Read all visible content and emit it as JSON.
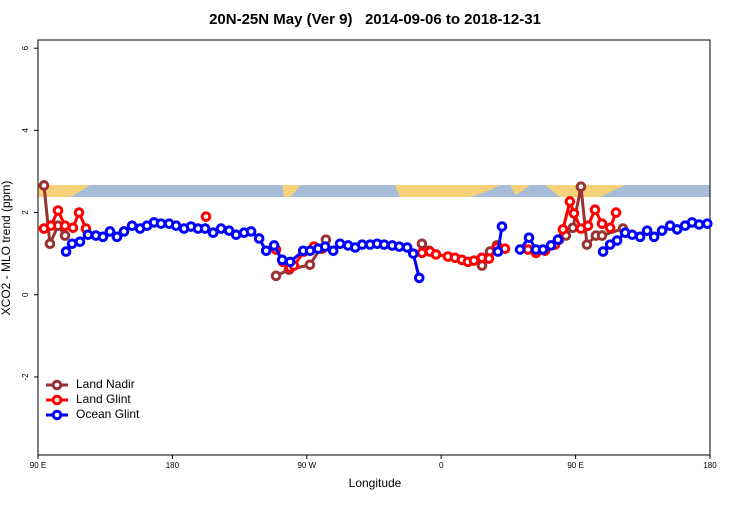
{
  "chart_data": {
    "type": "line",
    "title": "20N-25N May (Ver 9)   2014-09-06 to 2018-12-31",
    "x_label": "Longitude",
    "y_label": "XCO2 - MLO trend (ppm)",
    "xlim": [
      90,
      540
    ],
    "ylim": [
      -3.9,
      6.2
    ],
    "xticks": [
      {
        "value": 90,
        "label": "90 E"
      },
      {
        "value": 180,
        "label": "180"
      },
      {
        "value": 270,
        "label": "90 W"
      },
      {
        "value": 360,
        "label": "0"
      },
      {
        "value": 450,
        "label": "90 E"
      },
      {
        "value": 540,
        "label": "180"
      }
    ],
    "yticks": [
      -2,
      0,
      2,
      4,
      6
    ],
    "legend": "bottom-left",
    "series": [
      {
        "name": "Land Nadir",
        "color": "#993333",
        "x": [
          94.0,
          98.0,
          103.4,
          108.1,
          null,
          249.4,
          258.1,
          272.1,
          282.8,
          null,
          347.1,
          351.8,
          null,
          387.3,
          392.7,
          397.3,
          null,
          438.9,
          443.5,
          448.2,
          453.6,
          457.6,
          463.6,
          467.7,
          481.7
        ],
        "values": [
          2.66,
          1.24,
          1.68,
          1.44,
          null,
          0.46,
          0.61,
          0.73,
          1.34,
          null,
          1.24,
          1.07,
          null,
          0.71,
          1.05,
          1.2,
          null,
          1.34,
          1.44,
          1.63,
          2.63,
          1.22,
          1.44,
          1.44,
          1.61
        ]
      },
      {
        "name": "Land Glint",
        "color": "#ff0000",
        "x": [
          94.0,
          98.7,
          103.4,
          108.1,
          113.4,
          117.5,
          122.1,
          null,
          202.5,
          null,
          249.4,
          254.1,
          258.8,
          261.4,
          268.1,
          274.8,
          280.2,
          null,
          347.1,
          352.5,
          356.5,
          364.5,
          369.2,
          373.9,
          377.9,
          381.9,
          387.3,
          392.0,
          397.3,
          402.7,
          null,
          418.1,
          423.5,
          429.5,
          436.2,
          441.5,
          446.2,
          448.9,
          453.6,
          458.3,
          463.0,
          467.7,
          473.1,
          477.1
        ],
        "values": [
          1.61,
          1.68,
          2.05,
          1.68,
          1.63,
          2.0,
          1.61,
          null,
          1.9,
          null,
          1.1,
          0.8,
          0.66,
          0.71,
          1.05,
          1.17,
          1.12,
          null,
          1.02,
          1.05,
          0.98,
          0.93,
          0.9,
          0.85,
          0.8,
          0.83,
          0.9,
          0.88,
          1.15,
          1.12,
          null,
          1.1,
          1.02,
          1.07,
          1.22,
          1.59,
          2.27,
          1.98,
          1.61,
          1.68,
          2.07,
          1.73,
          1.63,
          2.0
        ]
      },
      {
        "name": "Ocean Glint",
        "color": "#0000ff",
        "x": [
          108.8,
          112.8,
          118.1,
          123.5,
          128.8,
          133.5,
          138.2,
          142.9,
          147.6,
          153.0,
          158.3,
          163.0,
          167.7,
          172.4,
          177.8,
          182.5,
          187.8,
          192.5,
          197.2,
          201.9,
          207.3,
          212.6,
          218.0,
          222.7,
          228.0,
          232.7,
          238.1,
          242.8,
          248.1,
          253.5,
          258.8,
          267.6,
          272.2,
          277.6,
          282.3,
          287.7,
          292.3,
          297.7,
          302.4,
          307.1,
          312.4,
          317.1,
          321.8,
          327.2,
          331.9,
          337.2,
          341.3,
          345.3,
          null,
          398.0,
          400.7,
          null,
          412.8,
          418.8,
          423.5,
          428.2,
          433.5,
          438.2,
          null,
          468.4,
          473.1,
          477.8,
          483.2,
          487.9,
          493.2,
          497.9,
          502.6,
          507.9,
          513.3,
          518.0,
          523.3,
          528.0,
          532.7,
          538.2
        ],
        "values": [
          1.05,
          1.24,
          1.29,
          1.46,
          1.44,
          1.41,
          1.54,
          1.41,
          1.54,
          1.68,
          1.61,
          1.68,
          1.76,
          1.73,
          1.73,
          1.68,
          1.61,
          1.66,
          1.61,
          1.61,
          1.51,
          1.61,
          1.56,
          1.46,
          1.51,
          1.54,
          1.37,
          1.07,
          1.2,
          0.85,
          0.8,
          1.07,
          1.07,
          1.12,
          1.17,
          1.07,
          1.24,
          1.2,
          1.15,
          1.22,
          1.22,
          1.24,
          1.22,
          1.2,
          1.17,
          1.15,
          1.0,
          0.41,
          null,
          1.05,
          1.66,
          null,
          1.1,
          1.39,
          1.1,
          1.1,
          1.2,
          1.34,
          null,
          1.05,
          1.22,
          1.32,
          1.51,
          1.46,
          1.41,
          1.56,
          1.41,
          1.56,
          1.68,
          1.59,
          1.68,
          1.76,
          1.71,
          1.73
        ]
      }
    ]
  }
}
